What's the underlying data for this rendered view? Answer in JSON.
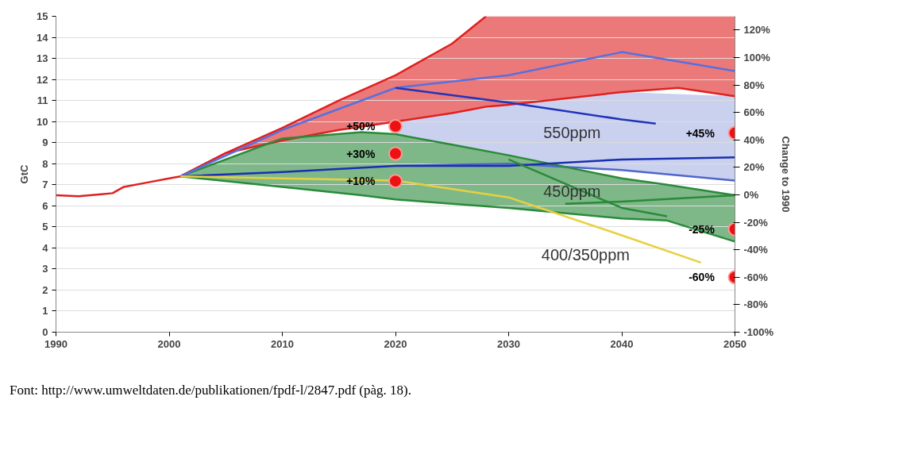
{
  "chart_data": {
    "type": "line",
    "ylabel": "GtC",
    "y2label": "Change to 1990",
    "xlim": [
      1990,
      2050
    ],
    "xticks": [
      1990,
      2000,
      2010,
      2020,
      2030,
      2040,
      2050
    ],
    "ylim": [
      0,
      15
    ],
    "yticks": [
      0,
      1,
      2,
      3,
      4,
      5,
      6,
      7,
      8,
      9,
      10,
      11,
      12,
      13,
      14,
      15
    ],
    "y2lim": [
      -100,
      130
    ],
    "y2ticks": [
      {
        "value": -100,
        "label": "-100%"
      },
      {
        "value": -80,
        "label": "-80%"
      },
      {
        "value": -60,
        "label": "-60%"
      },
      {
        "value": -40,
        "label": "-40%"
      },
      {
        "value": -20,
        "label": "-20%"
      },
      {
        "value": 0,
        "label": "0%"
      },
      {
        "value": 20,
        "label": "20%"
      },
      {
        "value": 40,
        "label": "40%"
      },
      {
        "value": 60,
        "label": "60%"
      },
      {
        "value": 80,
        "label": "80%"
      },
      {
        "value": 100,
        "label": "100%"
      },
      {
        "value": 120,
        "label": "120%"
      }
    ],
    "grid": "y",
    "line_style": "solid",
    "marker": "none",
    "series": [
      {
        "color": "#e02020",
        "x": [
          2001,
          2005,
          2010,
          2015,
          2020,
          2025,
          2028,
          2030,
          2040,
          2045,
          2050
        ],
        "values": [
          7.4,
          8.5,
          9.1,
          9.6,
          10,
          10.4,
          10.7,
          10.8,
          11.4,
          11.6,
          11.2
        ],
        "upper": [
          7.4,
          8.5,
          9.7,
          11,
          12.2,
          13.7,
          15,
          15,
          15,
          15,
          15
        ],
        "lower": [
          7.4,
          8.5,
          9.1,
          9.6,
          10,
          10.4,
          10.7,
          10.8,
          11.4,
          11.6,
          11.2
        ]
      },
      {
        "name": "550ppm",
        "color": "#4f66cc",
        "x": [
          2020,
          2025,
          2030,
          2040,
          2050
        ],
        "values": [
          7.9,
          7.95,
          8.0,
          7.7,
          7.2
        ],
        "upper": [
          10,
          10.4,
          10.8,
          11.4,
          11.2
        ],
        "lower": [
          7.9,
          7.95,
          8.0,
          7.7,
          7.2
        ]
      },
      {
        "name": "450ppm",
        "color": "#2a8a3a",
        "x": [
          2001,
          2010,
          2017,
          2020,
          2025,
          2030,
          2040,
          2044,
          2050
        ],
        "values": [
          7.4,
          9.2,
          9.5,
          9.4,
          8.9,
          8.4,
          7.3,
          7.0,
          6.5
        ],
        "upper": [
          7.4,
          9.2,
          9.5,
          9.4,
          8.9,
          8.4,
          7.3,
          7.0,
          6.5
        ],
        "lower": [
          7.4,
          6.9,
          6.5,
          6.3,
          6.1,
          5.9,
          5.4,
          5.3,
          4.3
        ]
      },
      {
        "color": "#2a8a3a",
        "x": [
          2001,
          2010,
          2017,
          2020,
          2025,
          2030,
          2040,
          2044,
          2050
        ],
        "values": [
          7.4,
          6.9,
          6.5,
          6.3,
          6.1,
          5.9,
          5.4,
          5.3,
          4.3
        ]
      },
      {
        "color": "#e02020",
        "x": [
          1990,
          1992,
          1994,
          1995,
          1996,
          1998,
          2000,
          2001,
          2005,
          2010,
          2015,
          2020,
          2025,
          2028
        ],
        "values": [
          6.5,
          6.45,
          6.55,
          6.6,
          6.9,
          7.1,
          7.3,
          7.4,
          8.5,
          9.7,
          11,
          12.2,
          13.7,
          15
        ]
      },
      {
        "color": "#5570e0",
        "x": [
          2001,
          2010,
          2020,
          2030,
          2040,
          2050
        ],
        "values": [
          7.4,
          9.6,
          11.6,
          12.2,
          13.3,
          12.4
        ]
      },
      {
        "color": "#2233bb",
        "x": [
          2020,
          2030,
          2040,
          2043
        ],
        "values": [
          11.6,
          10.9,
          10.1,
          9.9
        ]
      },
      {
        "color": "#1a2fb0",
        "x": [
          2001,
          2010,
          2020,
          2030,
          2040,
          2050
        ],
        "values": [
          7.4,
          7.6,
          7.9,
          7.9,
          8.2,
          8.3
        ]
      },
      {
        "color": "#2a8a3a",
        "x": [
          2030,
          2040,
          2044
        ],
        "values": [
          8.2,
          5.9,
          5.5
        ]
      },
      {
        "color": "#2a8a3a",
        "x": [
          2035,
          2040,
          2050
        ],
        "values": [
          6.1,
          6.2,
          6.5
        ]
      },
      {
        "name": "400/350ppm",
        "color": "#e8d040",
        "x": [
          2001,
          2010,
          2020,
          2030,
          2040,
          2047
        ],
        "values": [
          7.4,
          7.3,
          7.2,
          6.4,
          4.6,
          3.3
        ]
      },
      {
        "type": "scatter",
        "axis": "y2",
        "marker": "circle",
        "color": "#ee1111",
        "x": [
          2020,
          2020,
          2020,
          2050,
          2050,
          2050
        ],
        "values": [
          50,
          30,
          10,
          45,
          -25,
          -60
        ],
        "value_labels": [
          "+50%",
          "+30%",
          "+10%",
          "+45%",
          "-25%",
          "-60%"
        ]
      }
    ],
    "annotations": [
      "Font: http://www.umweltdaten.de/publikationen/fpdf-l/2847.pdf (pàg. 18)."
    ]
  }
}
